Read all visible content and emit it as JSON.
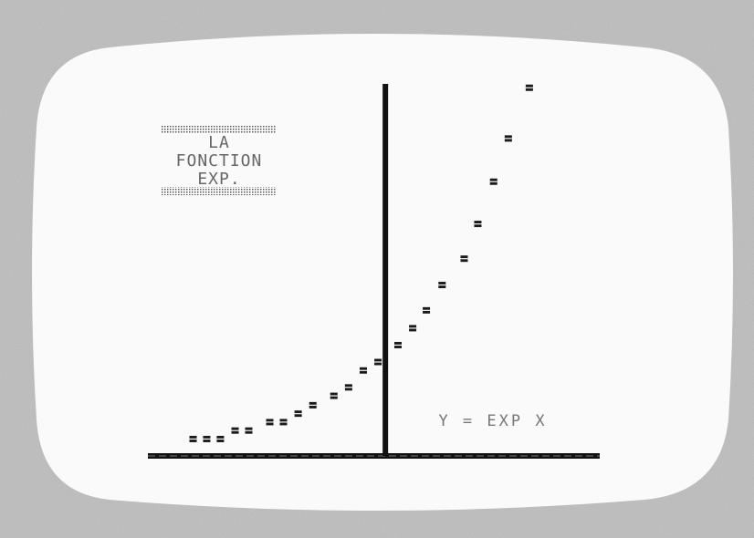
{
  "chart_data": {
    "type": "scatter",
    "title_lines": [
      "LA",
      "FONCTION",
      "EXP."
    ],
    "annotation": "Y = EXP X",
    "color": "#1a1a1a",
    "x": [
      -1.83,
      -1.7,
      -1.57,
      -1.43,
      -1.3,
      -1.1,
      -0.97,
      -0.83,
      -0.69,
      -0.49,
      -0.35,
      -0.21,
      -0.07,
      0.12,
      0.26,
      0.39,
      0.54,
      0.75,
      0.88,
      1.03,
      1.17,
      1.37
    ],
    "values": [
      0.18,
      0.18,
      0.18,
      0.27,
      0.27,
      0.36,
      0.36,
      0.45,
      0.54,
      0.64,
      0.73,
      0.91,
      1.0,
      1.18,
      1.36,
      1.55,
      1.82,
      2.1,
      2.47,
      2.92,
      3.38,
      3.92
    ],
    "xlim": [
      -2.26,
      2.04
    ],
    "ylim": [
      0,
      4
    ]
  }
}
